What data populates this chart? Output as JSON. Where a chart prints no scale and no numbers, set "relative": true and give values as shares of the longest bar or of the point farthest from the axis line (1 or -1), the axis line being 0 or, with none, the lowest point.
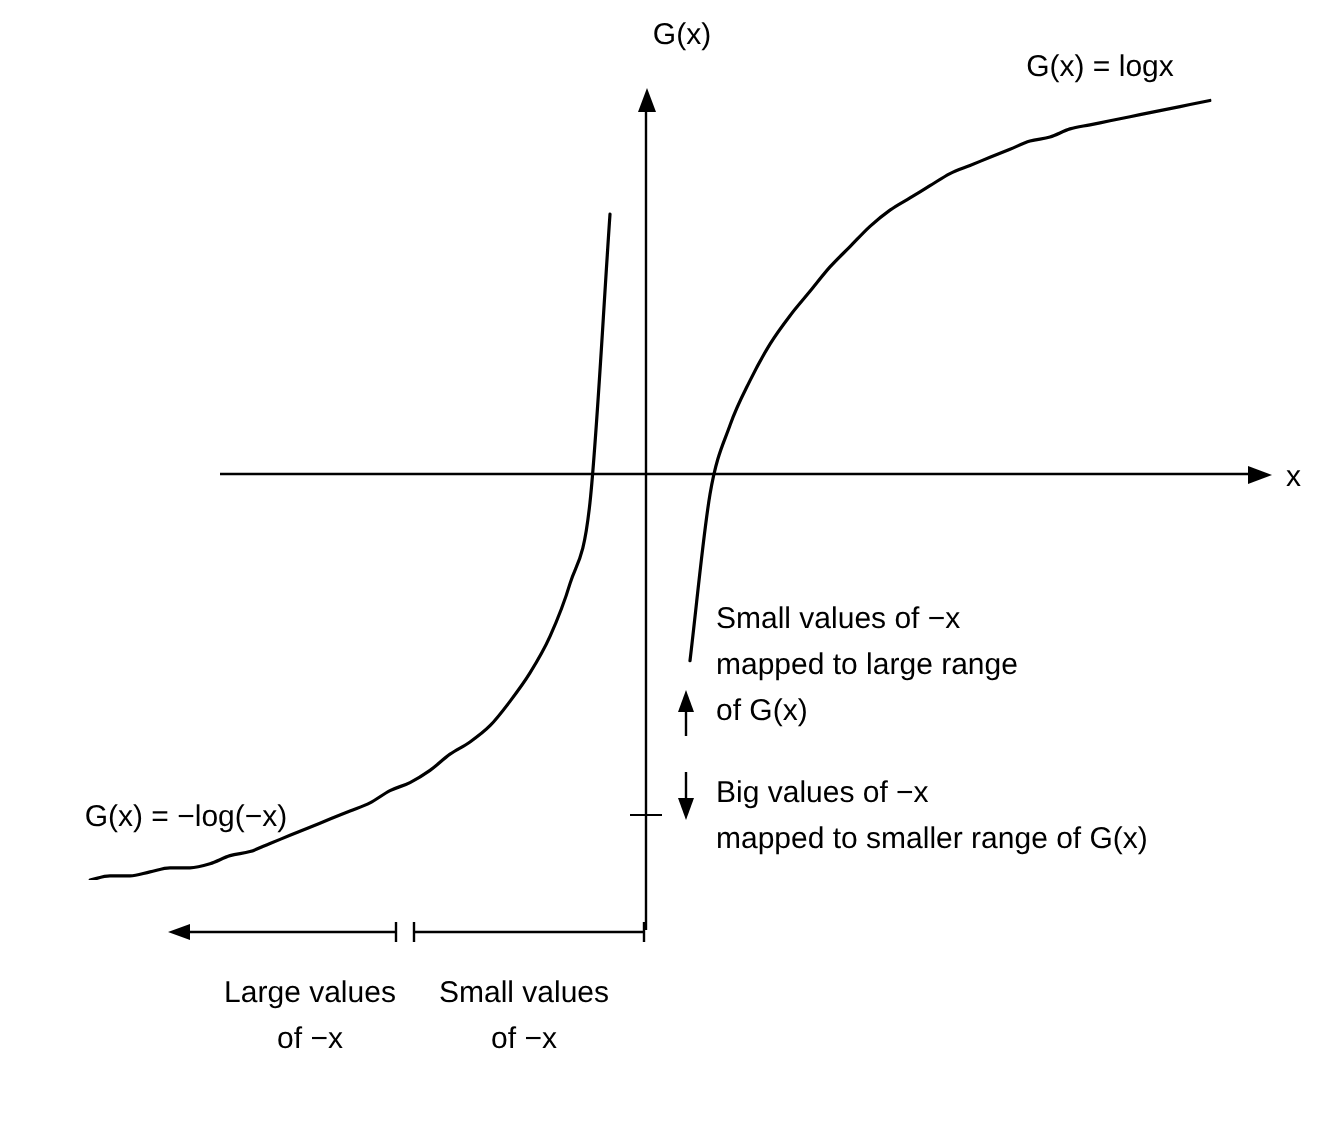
{
  "chart_data": {
    "type": "line",
    "relative": true,
    "xlabel": "x",
    "ylabel": "G(x)",
    "categories": [
      null,
      null,
      null,
      null,
      null,
      null,
      null,
      null,
      null,
      null,
      null,
      null,
      null,
      null,
      null,
      null,
      null,
      null,
      null,
      null,
      null,
      null,
      null,
      null,
      null,
      null,
      null,
      null,
      null,
      null,
      null,
      null,
      null,
      null,
      null,
      null,
      null,
      null,
      null,
      null,
      null,
      null,
      null,
      null,
      null,
      null,
      null,
      null,
      null,
      null,
      null,
      null,
      null,
      null,
      null,
      null,
      null
    ],
    "series": [
      {
        "name": "G(x) = −log(−x)",
        "color": "#000000",
        "values": [
          -1.0,
          -0.99,
          -0.99,
          -0.98,
          -0.97,
          -0.97,
          -0.96,
          -0.94,
          -0.93,
          -0.91,
          -0.89,
          -0.87,
          -0.85,
          -0.83,
          -0.81,
          -0.78,
          -0.76,
          -0.73,
          -0.69,
          -0.66,
          -0.62,
          -0.56,
          -0.49,
          -0.4,
          -0.27,
          -0.07,
          0.64,
          null,
          null,
          null,
          null,
          null,
          null,
          null,
          null,
          null,
          null,
          null,
          null,
          null,
          null,
          null,
          null,
          null,
          null,
          null,
          null,
          null,
          null,
          null,
          null,
          null,
          null,
          null,
          null,
          null,
          null
        ]
      },
      {
        "name": "G(x) = logx",
        "color": "#000000",
        "values": [
          null,
          null,
          null,
          null,
          null,
          null,
          null,
          null,
          null,
          null,
          null,
          null,
          null,
          null,
          null,
          null,
          null,
          null,
          null,
          null,
          null,
          null,
          null,
          null,
          null,
          null,
          null,
          null,
          null,
          null,
          -0.46,
          -0.05,
          0.12,
          0.23,
          0.32,
          0.39,
          0.45,
          0.51,
          0.56,
          0.61,
          0.65,
          0.68,
          0.71,
          0.74,
          0.76,
          0.78,
          0.8,
          0.82,
          0.83,
          0.85,
          0.86,
          0.87,
          0.88,
          0.89,
          0.9,
          0.91,
          0.92
        ]
      }
    ],
    "marker": "none",
    "line_style": "solid",
    "grid": false,
    "legend": false,
    "annotations": [
      "Small values of −x\nmapped to large range\nof G(x)",
      "Big values of −x\nmapped to smaller range of G(x)",
      "Large values\nof −x",
      "Small values\nof −x"
    ]
  }
}
